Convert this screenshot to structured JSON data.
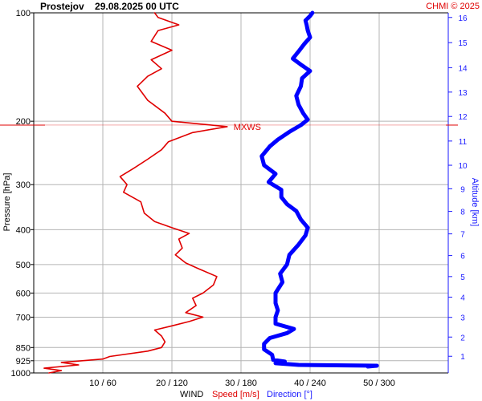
{
  "header": {
    "title": "Prostejov    29.08.2025 00 UTC",
    "credit": "CHMI © 2025"
  },
  "axes": {
    "left_label": "Pressure [hPa]",
    "right_label": "Altitude [km]",
    "bottom_label_wind": "WIND",
    "bottom_label_speed": "Speed [m/s]",
    "bottom_label_direction": "Direction [°]",
    "mxws_label": "MXWS"
  },
  "colors": {
    "speed": "#e00000",
    "direction": "#0000ff",
    "grid": "#b4b4b4",
    "altitude_axis": "#1a1aff"
  },
  "chart_data": {
    "type": "line",
    "title": "Prostejov    29.08.2025 00 UTC",
    "ylabel": "Pressure [hPa]",
    "y2label": "Altitude [km]",
    "xlabel": "WIND  Speed [m/s]  Direction [°]",
    "y_scale": "log",
    "y_inverted": true,
    "ylim": [
      1000,
      100
    ],
    "pressure_ticks": [
      100,
      200,
      300,
      400,
      500,
      600,
      700,
      850,
      925,
      1000
    ],
    "x_ticks": [
      "10 / 60",
      "20 / 120",
      "30 / 180",
      "40 / 240",
      "50 / 300"
    ],
    "speed_xlim": [
      0,
      60
    ],
    "direction_xlim": [
      0,
      360
    ],
    "altitude_ticks": [
      {
        "km": 1,
        "p": 899
      },
      {
        "km": 2,
        "p": 795
      },
      {
        "km": 3,
        "p": 701
      },
      {
        "km": 4,
        "p": 616
      },
      {
        "km": 5,
        "p": 540
      },
      {
        "km": 6,
        "p": 472
      },
      {
        "km": 7,
        "p": 411
      },
      {
        "km": 8,
        "p": 356
      },
      {
        "km": 9,
        "p": 308
      },
      {
        "km": 10,
        "p": 265
      },
      {
        "km": 11,
        "p": 227
      },
      {
        "km": 12,
        "p": 194
      },
      {
        "km": 13,
        "p": 166
      },
      {
        "km": 14,
        "p": 142
      },
      {
        "km": 15,
        "p": 121
      },
      {
        "km": 16,
        "p": 103
      }
    ],
    "mxws": {
      "label": "MXWS",
      "pressure": 205,
      "speed": 28
    },
    "series": [
      {
        "name": "Speed [m/s]",
        "color": "#e00000",
        "points": [
          [
            1000,
            2.2
          ],
          [
            985,
            4.0
          ],
          [
            970,
            1.5
          ],
          [
            950,
            6.5
          ],
          [
            935,
            4.0
          ],
          [
            915,
            10.0
          ],
          [
            900,
            11.0
          ],
          [
            870,
            16.5
          ],
          [
            850,
            18.5
          ],
          [
            820,
            19.0
          ],
          [
            790,
            18.5
          ],
          [
            760,
            17.5
          ],
          [
            740,
            20.0
          ],
          [
            720,
            22.5
          ],
          [
            700,
            24.5
          ],
          [
            680,
            22.0
          ],
          [
            650,
            23.5
          ],
          [
            620,
            23.0
          ],
          [
            600,
            24.5
          ],
          [
            570,
            26.0
          ],
          [
            540,
            26.5
          ],
          [
            515,
            24.0
          ],
          [
            495,
            22.0
          ],
          [
            470,
            20.5
          ],
          [
            450,
            21.5
          ],
          [
            425,
            21.0
          ],
          [
            410,
            22.5
          ],
          [
            395,
            20.0
          ],
          [
            380,
            17.5
          ],
          [
            360,
            16.0
          ],
          [
            335,
            15.5
          ],
          [
            315,
            13.0
          ],
          [
            300,
            13.5
          ],
          [
            285,
            12.5
          ],
          [
            270,
            14.5
          ],
          [
            255,
            16.5
          ],
          [
            240,
            18.5
          ],
          [
            228,
            19.5
          ],
          [
            215,
            23.0
          ],
          [
            207,
            28.0
          ],
          [
            200,
            20.0
          ],
          [
            190,
            19.0
          ],
          [
            175,
            16.5
          ],
          [
            160,
            15.0
          ],
          [
            150,
            16.5
          ],
          [
            143,
            18.5
          ],
          [
            135,
            17.0
          ],
          [
            127,
            20.0
          ],
          [
            120,
            17.0
          ],
          [
            112,
            18.0
          ],
          [
            108,
            21.0
          ],
          [
            103,
            18.0
          ],
          [
            100,
            17.5
          ]
        ]
      },
      {
        "name": "Direction [°]",
        "color": "#0000ff",
        "points": [
          [
            960,
            290
          ],
          [
            955,
            298
          ],
          [
            950,
            230
          ],
          [
            940,
            210
          ],
          [
            930,
            218
          ],
          [
            920,
            208
          ],
          [
            890,
            207
          ],
          [
            860,
            200
          ],
          [
            830,
            200
          ],
          [
            800,
            205
          ],
          [
            775,
            220
          ],
          [
            755,
            226
          ],
          [
            730,
            210
          ],
          [
            700,
            210
          ],
          [
            670,
            212
          ],
          [
            640,
            210
          ],
          [
            600,
            210
          ],
          [
            560,
            216
          ],
          [
            530,
            214
          ],
          [
            500,
            220
          ],
          [
            470,
            222
          ],
          [
            440,
            230
          ],
          [
            415,
            236
          ],
          [
            395,
            238
          ],
          [
            375,
            232
          ],
          [
            355,
            228
          ],
          [
            340,
            220
          ],
          [
            325,
            215
          ],
          [
            310,
            215
          ],
          [
            295,
            204
          ],
          [
            280,
            210
          ],
          [
            265,
            200
          ],
          [
            250,
            198
          ],
          [
            235,
            205
          ],
          [
            225,
            212
          ],
          [
            214,
            222
          ],
          [
            205,
            232
          ],
          [
            198,
            238
          ],
          [
            190,
            234
          ],
          [
            180,
            230
          ],
          [
            170,
            228
          ],
          [
            160,
            232
          ],
          [
            152,
            233
          ],
          [
            145,
            240
          ],
          [
            140,
            233
          ],
          [
            134,
            225
          ],
          [
            128,
            230
          ],
          [
            122,
            235
          ],
          [
            117,
            240
          ],
          [
            112,
            238
          ],
          [
            108,
            237
          ],
          [
            105,
            236
          ],
          [
            102,
            240
          ],
          [
            100,
            242
          ]
        ]
      }
    ]
  }
}
